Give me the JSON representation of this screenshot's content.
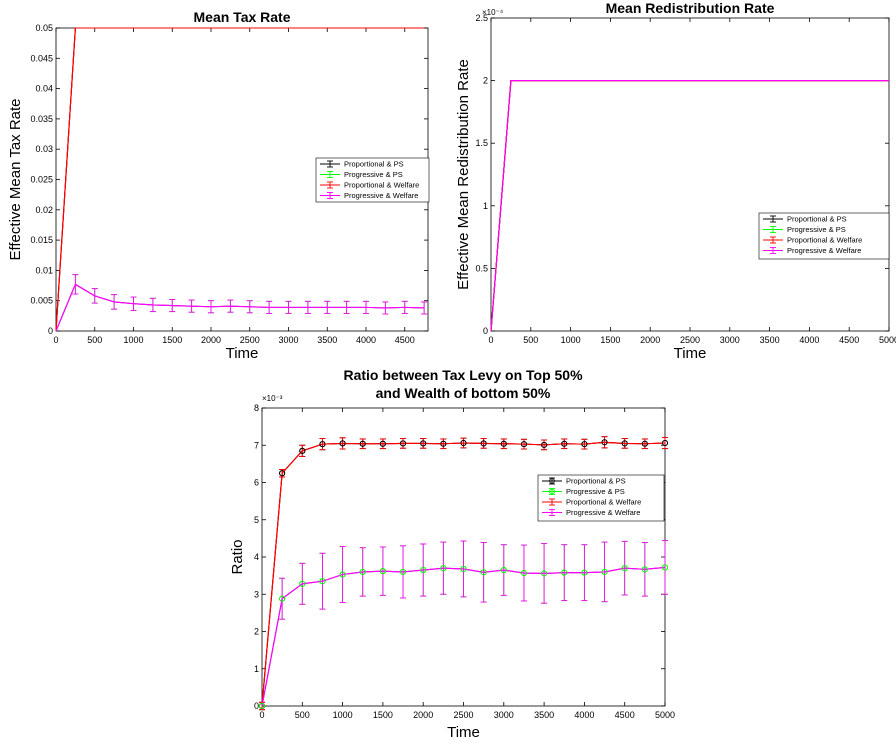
{
  "chart_data": [
    {
      "type": "line",
      "title": "Mean Tax Rate",
      "title2": "",
      "xlabel": "Time",
      "ylabel": "Effective Mean Tax Rate",
      "xlim": [
        0,
        4800
      ],
      "ylim": [
        0,
        0.05
      ],
      "xticks": [
        "0",
        "500",
        "1000",
        "1500",
        "2000",
        "2500",
        "3000",
        "3500",
        "4000",
        "4500"
      ],
      "yticks": [
        "0",
        "0.005",
        "0.01",
        "0.015",
        "0.02",
        "0.025",
        "0.03",
        "0.035",
        "0.04",
        "0.045",
        "0.05"
      ],
      "exponent": "",
      "legend_location": "right",
      "x": [
        0,
        250,
        500,
        750,
        1000,
        1250,
        1500,
        1750,
        2000,
        2250,
        2500,
        2750,
        3000,
        3250,
        3500,
        3750,
        4000,
        4250,
        4500,
        4750
      ],
      "series": [
        {
          "name": "Proportional & PS",
          "color": "#000000",
          "marker": "none",
          "values": [
            0,
            0.05,
            0.05,
            0.05,
            0.05,
            0.05,
            0.05,
            0.05,
            0.05,
            0.05,
            0.05,
            0.05,
            0.05,
            0.05,
            0.05,
            0.05,
            0.05,
            0.05,
            0.05,
            0.05
          ],
          "errors": [
            0,
            0,
            0,
            0,
            0,
            0,
            0,
            0,
            0,
            0,
            0,
            0,
            0,
            0,
            0,
            0,
            0,
            0,
            0,
            0
          ]
        },
        {
          "name": "Progressive & PS",
          "color": "#00ff00",
          "marker": "none",
          "values": [
            0,
            0.0077,
            0.0058,
            0.0048,
            0.0045,
            0.0043,
            0.0042,
            0.0041,
            0.004,
            0.0041,
            0.004,
            0.0039,
            0.0039,
            0.0039,
            0.0039,
            0.0039,
            0.0039,
            0.0038,
            0.0039,
            0.0038
          ],
          "errors": [
            0,
            0.0016,
            0.0012,
            0.0012,
            0.0011,
            0.0011,
            0.001,
            0.001,
            0.001,
            0.001,
            0.001,
            0.001,
            0.001,
            0.001,
            0.001,
            0.001,
            0.001,
            0.001,
            0.001,
            0.001
          ]
        },
        {
          "name": "Proportional & Welfare",
          "color": "#ff0000",
          "marker": "none",
          "values": [
            0,
            0.05,
            0.05,
            0.05,
            0.05,
            0.05,
            0.05,
            0.05,
            0.05,
            0.05,
            0.05,
            0.05,
            0.05,
            0.05,
            0.05,
            0.05,
            0.05,
            0.05,
            0.05,
            0.05
          ],
          "errors": [
            0,
            0,
            0,
            0,
            0,
            0,
            0,
            0,
            0,
            0,
            0,
            0,
            0,
            0,
            0,
            0,
            0,
            0,
            0,
            0
          ]
        },
        {
          "name": "Progressive & Welfare",
          "color": "#ff00ff",
          "marker": "none",
          "values": [
            0,
            0.0077,
            0.0058,
            0.0048,
            0.0045,
            0.0043,
            0.0042,
            0.0041,
            0.004,
            0.0041,
            0.004,
            0.0039,
            0.0039,
            0.0039,
            0.0039,
            0.0039,
            0.0039,
            0.0038,
            0.0039,
            0.0038
          ],
          "errors": [
            0,
            0.0016,
            0.0012,
            0.0012,
            0.0011,
            0.0011,
            0.001,
            0.001,
            0.001,
            0.001,
            0.001,
            0.001,
            0.001,
            0.001,
            0.001,
            0.001,
            0.001,
            0.001,
            0.001,
            0.001
          ]
        }
      ]
    },
    {
      "type": "line",
      "title": "Mean Redistribution Rate",
      "title2": "",
      "xlabel": "Time",
      "ylabel": "Effective Mean Redistribution Rate",
      "xlim": [
        0,
        5000
      ],
      "ylim": [
        0,
        2.5
      ],
      "xticks": [
        "0",
        "500",
        "1000",
        "1500",
        "2000",
        "2500",
        "3000",
        "3500",
        "4000",
        "4500",
        "5000"
      ],
      "yticks": [
        "0",
        "0.5",
        "1",
        "1.5",
        "2",
        "2.5"
      ],
      "exponent": "×10⁻⁴",
      "legend_location": "right",
      "x": [
        0,
        250,
        500,
        750,
        1000,
        1250,
        1500,
        1750,
        2000,
        2250,
        2500,
        2750,
        3000,
        3250,
        3500,
        3750,
        4000,
        4250,
        4500,
        4750,
        5000
      ],
      "series": [
        {
          "name": "Proportional & PS",
          "color": "#000000",
          "marker": "none",
          "values": [
            0,
            2,
            2,
            2,
            2,
            2,
            2,
            2,
            2,
            2,
            2,
            2,
            2,
            2,
            2,
            2,
            2,
            2,
            2,
            2,
            2
          ],
          "errors": []
        },
        {
          "name": "Progressive & PS",
          "color": "#00ff00",
          "marker": "none",
          "values": [
            0,
            2,
            2,
            2,
            2,
            2,
            2,
            2,
            2,
            2,
            2,
            2,
            2,
            2,
            2,
            2,
            2,
            2,
            2,
            2,
            2
          ],
          "errors": []
        },
        {
          "name": "Proportional & Welfare",
          "color": "#ff0000",
          "marker": "none",
          "values": [
            0,
            2,
            2,
            2,
            2,
            2,
            2,
            2,
            2,
            2,
            2,
            2,
            2,
            2,
            2,
            2,
            2,
            2,
            2,
            2,
            2
          ],
          "errors": []
        },
        {
          "name": "Progressive & Welfare",
          "color": "#ff00ff",
          "marker": "none",
          "values": [
            0,
            2,
            2,
            2,
            2,
            2,
            2,
            2,
            2,
            2,
            2,
            2,
            2,
            2,
            2,
            2,
            2,
            2,
            2,
            2,
            2
          ],
          "errors": []
        }
      ]
    },
    {
      "type": "line",
      "title": "Ratio between Tax Levy on Top 50%",
      "title2": "and Wealth of bottom 50%",
      "xlabel": "Time",
      "ylabel": "Ratio",
      "xlim": [
        0,
        5000
      ],
      "ylim": [
        0,
        8
      ],
      "xticks": [
        "0",
        "500",
        "1000",
        "1500",
        "2000",
        "2500",
        "3000",
        "3500",
        "4000",
        "4500",
        "5000"
      ],
      "yticks": [
        "0",
        "1",
        "2",
        "3",
        "4",
        "5",
        "6",
        "7",
        "8"
      ],
      "exponent": "×10⁻³",
      "legend_location": "top-right",
      "x": [
        0,
        250,
        500,
        750,
        1000,
        1250,
        1500,
        1750,
        2000,
        2250,
        2500,
        2750,
        3000,
        3250,
        3500,
        3750,
        4000,
        4250,
        4500,
        4750,
        5000
      ],
      "series": [
        {
          "name": "Proportional & PS",
          "color": "#000000",
          "marker": "circle",
          "values": [
            0,
            6.25,
            6.85,
            7.03,
            7.05,
            7.04,
            7.04,
            7.05,
            7.05,
            7.04,
            7.06,
            7.05,
            7.04,
            7.03,
            7.01,
            7.04,
            7.03,
            7.08,
            7.05,
            7.04,
            7.06
          ],
          "errors": [
            0.1,
            0.1,
            0.15,
            0.15,
            0.15,
            0.13,
            0.13,
            0.13,
            0.13,
            0.13,
            0.13,
            0.13,
            0.13,
            0.13,
            0.13,
            0.13,
            0.13,
            0.15,
            0.13,
            0.13,
            0.15
          ]
        },
        {
          "name": "Progressive & PS",
          "color": "#00ff00",
          "marker": "circle",
          "values": [
            0,
            2.88,
            3.28,
            3.35,
            3.53,
            3.6,
            3.62,
            3.6,
            3.65,
            3.7,
            3.68,
            3.59,
            3.65,
            3.57,
            3.56,
            3.58,
            3.58,
            3.6,
            3.7,
            3.67,
            3.72
          ],
          "errors": [
            0,
            0.55,
            0.55,
            0.75,
            0.75,
            0.65,
            0.65,
            0.7,
            0.7,
            0.7,
            0.75,
            0.8,
            0.68,
            0.75,
            0.8,
            0.75,
            0.75,
            0.8,
            0.72,
            0.72,
            0.72
          ]
        },
        {
          "name": "Proportional & Welfare",
          "color": "#ff0000",
          "marker": "none",
          "values": [
            0,
            6.25,
            6.85,
            7.03,
            7.05,
            7.04,
            7.04,
            7.05,
            7.05,
            7.04,
            7.06,
            7.05,
            7.04,
            7.03,
            7.01,
            7.04,
            7.03,
            7.08,
            7.05,
            7.04,
            7.06
          ],
          "errors": [
            0.1,
            0.1,
            0.15,
            0.15,
            0.15,
            0.13,
            0.13,
            0.13,
            0.13,
            0.13,
            0.13,
            0.13,
            0.13,
            0.13,
            0.13,
            0.13,
            0.13,
            0.15,
            0.13,
            0.13,
            0.15
          ]
        },
        {
          "name": "Progressive & Welfare",
          "color": "#ff00ff",
          "marker": "none",
          "values": [
            0,
            2.88,
            3.28,
            3.35,
            3.53,
            3.6,
            3.62,
            3.6,
            3.65,
            3.7,
            3.68,
            3.59,
            3.65,
            3.57,
            3.56,
            3.58,
            3.58,
            3.6,
            3.7,
            3.67,
            3.72
          ],
          "errors": [
            0,
            0.55,
            0.55,
            0.75,
            0.75,
            0.65,
            0.65,
            0.7,
            0.7,
            0.7,
            0.75,
            0.8,
            0.68,
            0.75,
            0.8,
            0.75,
            0.75,
            0.8,
            0.72,
            0.72,
            0.72
          ]
        }
      ]
    }
  ]
}
